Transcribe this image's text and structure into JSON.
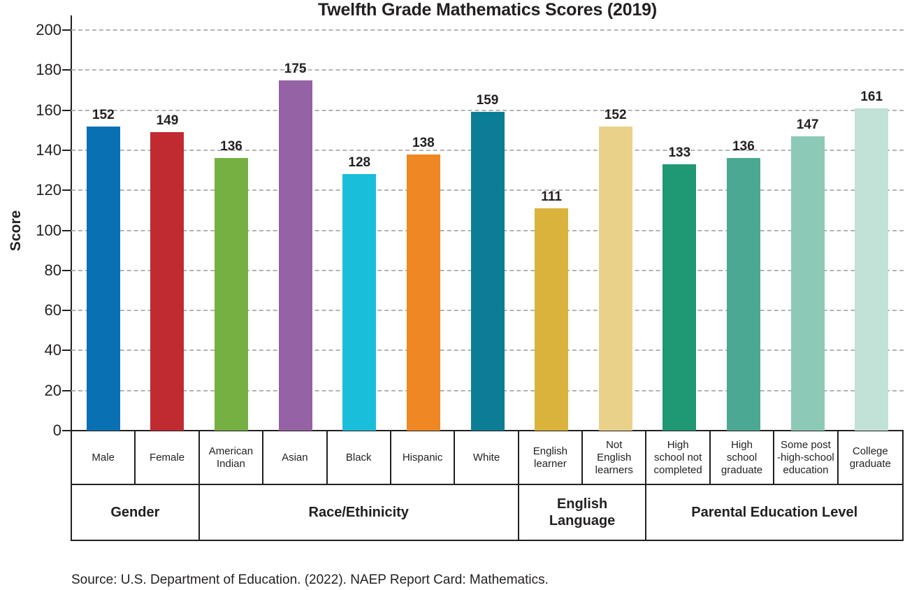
{
  "title": "Twelfth Grade Mathematics Scores (2019)",
  "source": "Source: U.S. Department of Education. (2022). NAEP Report Card: Mathematics.",
  "colors": {
    "text": "#231f20",
    "gridline": "#b3b3b3"
  },
  "chart_data": {
    "type": "bar",
    "title": "Twelfth Grade Mathematics Scores (2019)",
    "xlabel": "",
    "ylabel": "Score",
    "ylim": [
      0,
      200
    ],
    "yticks": [
      0,
      20,
      40,
      60,
      80,
      100,
      120,
      140,
      160,
      180,
      200
    ],
    "grid": "horizontal dashed",
    "legend": "none",
    "categories": [
      "Male",
      "Female",
      "American\nIndian",
      "Asian",
      "Black",
      "Hispanic",
      "White",
      "English\nlearner",
      "Not\nEnglish\nlearners",
      "High\nschool not\ncompleted",
      "High\nschool\ngraduate",
      "Some post\n-high-school\neducation",
      "College\ngraduate"
    ],
    "values": [
      152,
      149,
      136,
      175,
      128,
      138,
      159,
      111,
      152,
      133,
      136,
      147,
      161
    ],
    "bar_colors": [
      "#0a70b4",
      "#c02b31",
      "#76b043",
      "#9562a5",
      "#19bfda",
      "#ef8722",
      "#0b7e96",
      "#d9b33c",
      "#e9d189",
      "#1f9874",
      "#4ba892",
      "#8ccab7",
      "#c2e1d7"
    ],
    "groups": [
      {
        "label": "Gender",
        "span": 2
      },
      {
        "label": "Race/Ethinicity",
        "span": 5
      },
      {
        "label": "English\nLanguage",
        "span": 2
      },
      {
        "label": "Parental Education Level",
        "span": 4
      }
    ]
  }
}
